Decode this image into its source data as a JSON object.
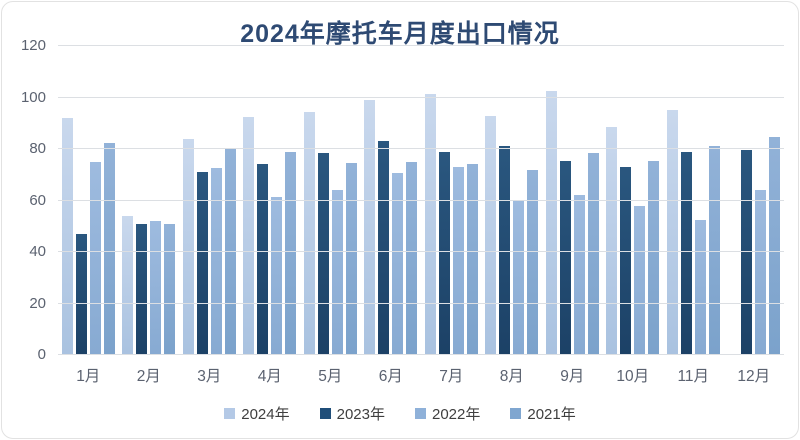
{
  "chart_data": {
    "type": "bar",
    "title": "2024年摩托车月度出口情况",
    "categories": [
      "1月",
      "2月",
      "3月",
      "4月",
      "5月",
      "6月",
      "7月",
      "8月",
      "9月",
      "10月",
      "11月",
      "12月"
    ],
    "series": [
      {
        "name": "2024年",
        "color": "#b4c9e6",
        "color_top": "#c9d8ed",
        "color_bottom": "#a9c2e0",
        "values": [
          92,
          54,
          84,
          92.5,
          94.5,
          99,
          101.5,
          93,
          102.5,
          88.5,
          95,
          null
        ]
      },
      {
        "name": "2023年",
        "color": "#1f4e79",
        "color_top": "#2a577f",
        "color_bottom": "#1c4166",
        "values": [
          47,
          51,
          71,
          74,
          78.5,
          83,
          79,
          81,
          75.5,
          73,
          79,
          79.5
        ]
      },
      {
        "name": "2022年",
        "color": "#8fb1d9",
        "color_top": "#9ebbdf",
        "color_bottom": "#87aad2",
        "values": [
          75,
          52,
          72.5,
          61.5,
          64,
          70.5,
          73,
          60,
          62,
          58,
          52.5,
          64
        ]
      },
      {
        "name": "2021年",
        "color": "#7fa6d0",
        "color_top": "#92b2d8",
        "color_bottom": "#7ba2cb",
        "values": [
          82.5,
          51,
          80.5,
          79,
          74.5,
          75,
          74,
          72,
          78.5,
          75.5,
          81,
          84.5
        ]
      }
    ],
    "xlabel": "",
    "ylabel": "",
    "ylim": [
      0,
      120
    ],
    "yticks": [
      0,
      20,
      40,
      60,
      80,
      100,
      120
    ],
    "grid": true,
    "legend_position": "bottom"
  }
}
